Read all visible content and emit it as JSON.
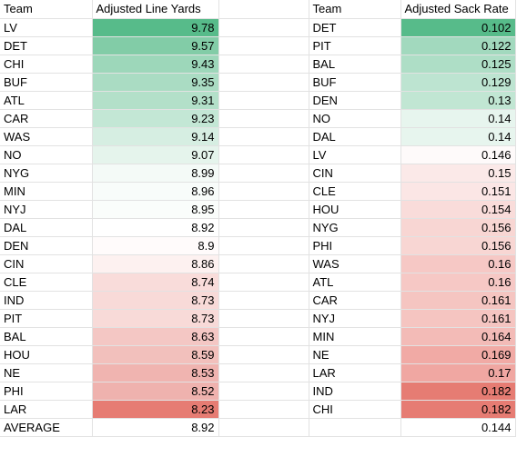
{
  "headers": {
    "left_team": "Team",
    "left_value": "Adjusted Line Yards",
    "right_team": "Team",
    "right_value": "Adjusted Sack Rate"
  },
  "line_yards": [
    {
      "team": "LV",
      "value": "9.78",
      "color": "#57bb8a"
    },
    {
      "team": "DET",
      "value": "9.57",
      "color": "#82cca7"
    },
    {
      "team": "CHI",
      "value": "9.43",
      "color": "#9dd7ba"
    },
    {
      "team": "BUF",
      "value": "9.35",
      "color": "#aadcc3"
    },
    {
      "team": "ATL",
      "value": "9.31",
      "color": "#b3e0c9"
    },
    {
      "team": "CAR",
      "value": "9.23",
      "color": "#c3e7d5"
    },
    {
      "team": "WAS",
      "value": "9.14",
      "color": "#d6eee2"
    },
    {
      "team": "NO",
      "value": "9.07",
      "color": "#e5f4ec"
    },
    {
      "team": "NYG",
      "value": "8.99",
      "color": "#f4faf7"
    },
    {
      "team": "MIN",
      "value": "8.96",
      "color": "#f8fcfa"
    },
    {
      "team": "NYJ",
      "value": "8.95",
      "color": "#fafdfb"
    },
    {
      "team": "DAL",
      "value": "8.92",
      "color": "#ffffff"
    },
    {
      "team": "DEN",
      "value": "8.9",
      "color": "#fffbfb"
    },
    {
      "team": "CIN",
      "value": "8.86",
      "color": "#fdf1f0"
    },
    {
      "team": "CLE",
      "value": "8.74",
      "color": "#f9dcda"
    },
    {
      "team": "IND",
      "value": "8.73",
      "color": "#f8dad8"
    },
    {
      "team": "PIT",
      "value": "8.73",
      "color": "#f8dad8"
    },
    {
      "team": "BAL",
      "value": "8.63",
      "color": "#f4c7c4"
    },
    {
      "team": "HOU",
      "value": "8.59",
      "color": "#f2c0bc"
    },
    {
      "team": "NE",
      "value": "8.53",
      "color": "#f0b4b0"
    },
    {
      "team": "PHI",
      "value": "8.52",
      "color": "#efb2ae"
    },
    {
      "team": "LAR",
      "value": "8.23",
      "color": "#e67c73"
    }
  ],
  "sack_rate": [
    {
      "team": "DET",
      "value": "0.102",
      "color": "#57bb8a"
    },
    {
      "team": "PIT",
      "value": "0.122",
      "color": "#a2d9be"
    },
    {
      "team": "BAL",
      "value": "0.125",
      "color": "#aedec6"
    },
    {
      "team": "BUF",
      "value": "0.129",
      "color": "#bde4d1"
    },
    {
      "team": "DEN",
      "value": "0.13",
      "color": "#c1e6d3"
    },
    {
      "team": "NO",
      "value": "0.14",
      "color": "#e7f5ee"
    },
    {
      "team": "DAL",
      "value": "0.14",
      "color": "#e7f5ee"
    },
    {
      "team": "LV",
      "value": "0.146",
      "color": "#fefafa"
    },
    {
      "team": "CIN",
      "value": "0.15",
      "color": "#fbe9e8"
    },
    {
      "team": "CLE",
      "value": "0.151",
      "color": "#fbe6e5"
    },
    {
      "team": "HOU",
      "value": "0.154",
      "color": "#f9dcda"
    },
    {
      "team": "NYG",
      "value": "0.156",
      "color": "#f8d6d3"
    },
    {
      "team": "PHI",
      "value": "0.156",
      "color": "#f8d6d3"
    },
    {
      "team": "WAS",
      "value": "0.16",
      "color": "#f6c8c5"
    },
    {
      "team": "ATL",
      "value": "0.16",
      "color": "#f6c8c5"
    },
    {
      "team": "CAR",
      "value": "0.161",
      "color": "#f5c5c1"
    },
    {
      "team": "NYJ",
      "value": "0.161",
      "color": "#f5c5c1"
    },
    {
      "team": "MIN",
      "value": "0.164",
      "color": "#f3bbb7"
    },
    {
      "team": "NE",
      "value": "0.169",
      "color": "#f1aaa5"
    },
    {
      "team": "LAR",
      "value": "0.17",
      "color": "#f0a7a2"
    },
    {
      "team": "IND",
      "value": "0.182",
      "color": "#e67c73"
    },
    {
      "team": "CHI",
      "value": "0.182",
      "color": "#e67c73"
    }
  ],
  "average": {
    "label": "AVERAGE",
    "line_yards": "8.92",
    "sack_rate": "0.144"
  }
}
